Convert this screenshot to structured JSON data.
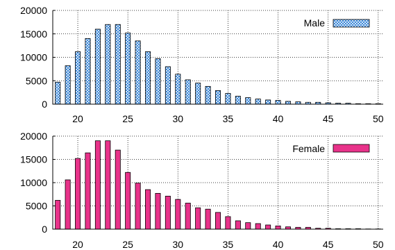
{
  "chart_data": [
    {
      "type": "bar",
      "grid": true,
      "legend_position": "top-right",
      "series": [
        {
          "name": "Male",
          "pattern": "crosshatch",
          "color": "#1f77d4"
        }
      ],
      "x": [
        18,
        19,
        20,
        21,
        22,
        23,
        24,
        25,
        26,
        27,
        28,
        29,
        30,
        31,
        32,
        33,
        34,
        35,
        36,
        37,
        38,
        39,
        40,
        41,
        42,
        43,
        44,
        45,
        46,
        47,
        48,
        49,
        50
      ],
      "values": [
        4700,
        8200,
        11200,
        14000,
        16000,
        17000,
        17000,
        15200,
        13500,
        11200,
        9700,
        8000,
        6400,
        5200,
        4500,
        3800,
        2900,
        2300,
        1700,
        1400,
        1100,
        900,
        800,
        600,
        500,
        400,
        400,
        300,
        200,
        200,
        100,
        100,
        100
      ],
      "xlim": [
        17.5,
        50.5
      ],
      "ylim": [
        0,
        20000
      ],
      "yticks": [
        "0",
        "5000",
        "10000",
        "15000",
        "20000"
      ],
      "xticks": [
        "20",
        "25",
        "30",
        "35",
        "40",
        "45",
        "50"
      ]
    },
    {
      "type": "bar",
      "grid": true,
      "legend_position": "top-right",
      "series": [
        {
          "name": "Female",
          "pattern": "solid",
          "color": "#e8338a"
        }
      ],
      "x": [
        18,
        19,
        20,
        21,
        22,
        23,
        24,
        25,
        26,
        27,
        28,
        29,
        30,
        31,
        32,
        33,
        34,
        35,
        36,
        37,
        38,
        39,
        40,
        41,
        42,
        43,
        44,
        45,
        46,
        47,
        48,
        49,
        50
      ],
      "values": [
        6200,
        10600,
        15200,
        16400,
        19000,
        19000,
        17000,
        12200,
        9900,
        8500,
        7700,
        7100,
        6400,
        5600,
        4600,
        4300,
        3600,
        2700,
        1800,
        1400,
        1200,
        900,
        700,
        500,
        400,
        400,
        200,
        200,
        100,
        100,
        100,
        50,
        50
      ],
      "xlim": [
        17.5,
        50.5
      ],
      "ylim": [
        0,
        20000
      ],
      "yticks": [
        "0",
        "5000",
        "10000",
        "15000",
        "20000"
      ],
      "xticks": [
        "20",
        "25",
        "30",
        "35",
        "40",
        "45",
        "50"
      ]
    }
  ]
}
